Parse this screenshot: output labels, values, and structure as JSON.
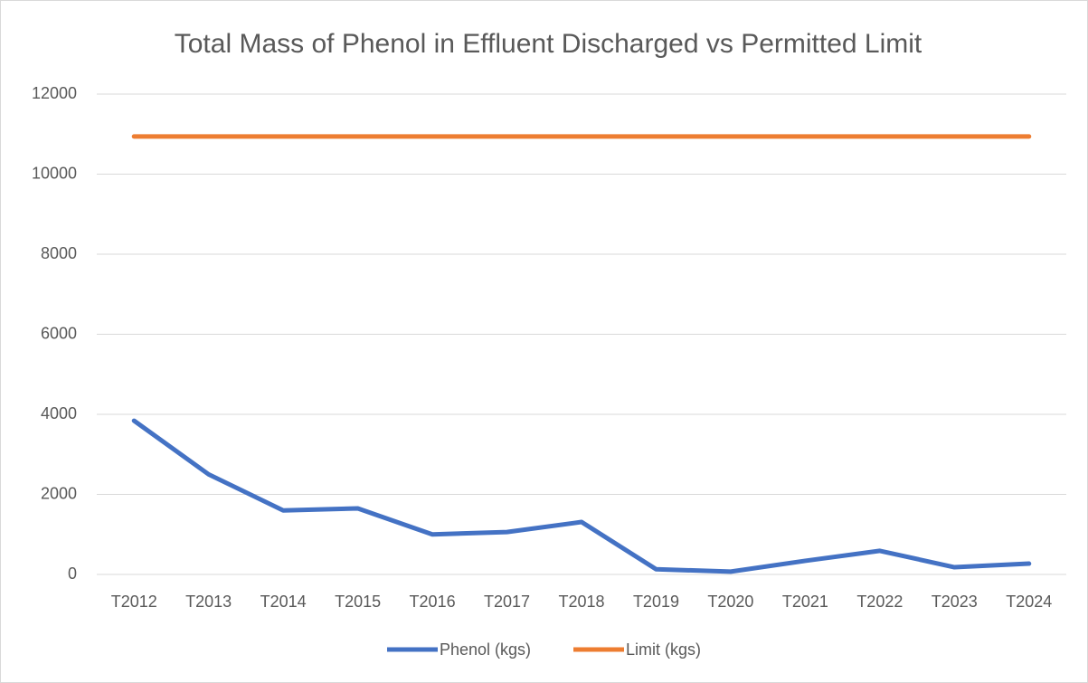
{
  "chart_data": {
    "type": "line",
    "title": "Total Mass of Phenol in Effluent Discharged vs Permitted Limit",
    "categories": [
      "T2012",
      "T2013",
      "T2014",
      "T2015",
      "T2016",
      "T2017",
      "T2018",
      "T2019",
      "T2020",
      "T2021",
      "T2022",
      "T2023",
      "T2024"
    ],
    "series": [
      {
        "name": "Phenol (kgs)",
        "color": "#4472c4",
        "values": [
          3840,
          2500,
          1600,
          1650,
          1000,
          1060,
          1310,
          130,
          70,
          340,
          590,
          180,
          270
        ]
      },
      {
        "name": "Limit (kgs)",
        "color": "#ed7d31",
        "values": [
          10940,
          10940,
          10940,
          10940,
          10940,
          10940,
          10940,
          10940,
          10940,
          10940,
          10940,
          10940,
          10940
        ]
      }
    ],
    "ylim": [
      0,
      12000
    ],
    "yticks": [
      0,
      2000,
      4000,
      6000,
      8000,
      10000,
      12000
    ],
    "grid": true,
    "legend": "bottom"
  }
}
